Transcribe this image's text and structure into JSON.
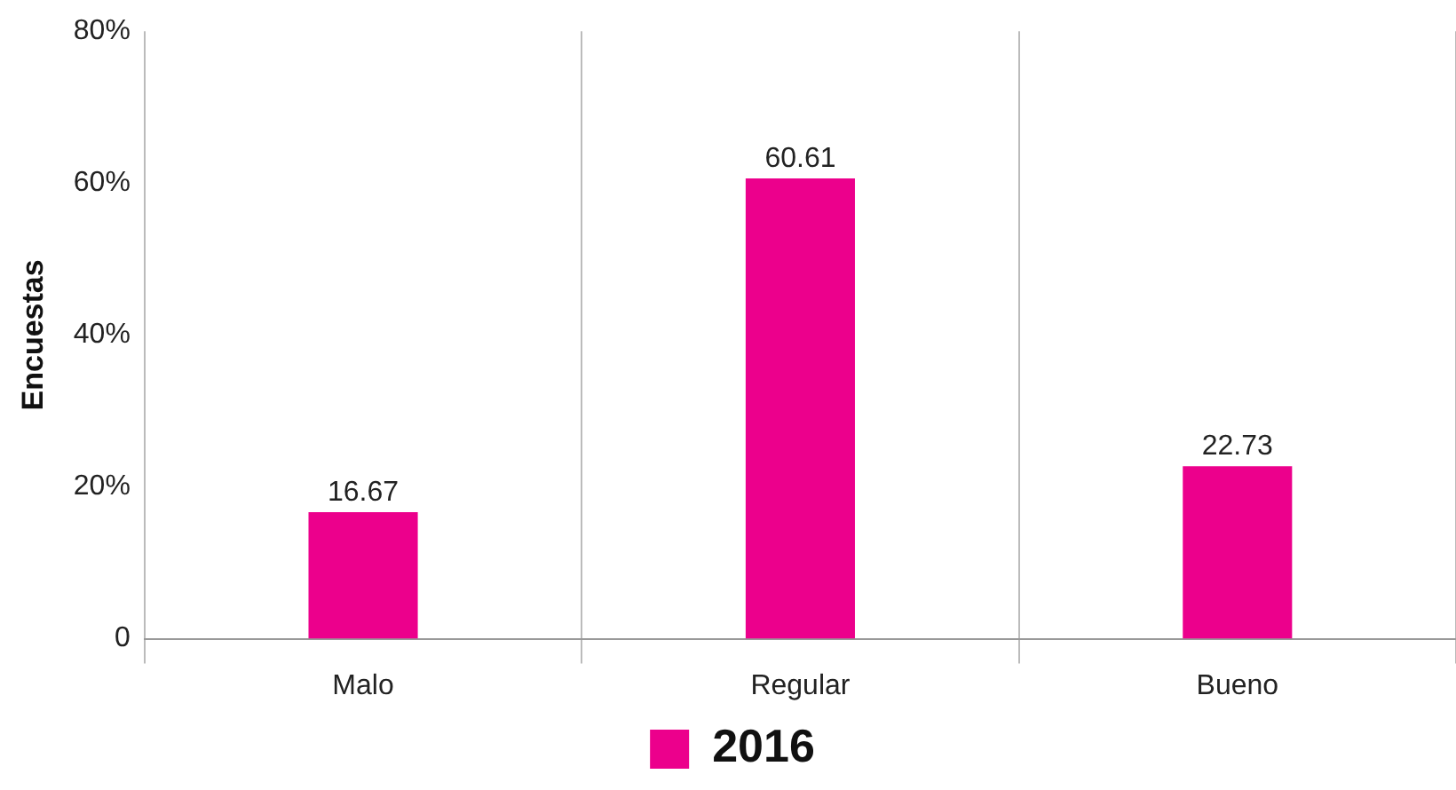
{
  "chart_data": {
    "type": "bar",
    "ylabel": "Encuestas",
    "categories": [
      "Malo",
      "Regular",
      "Bueno"
    ],
    "series": [
      {
        "name": "2016",
        "color": "#ec008c",
        "values": [
          16.67,
          60.61,
          22.73
        ]
      }
    ],
    "ylim": [
      0,
      80
    ],
    "yticks": [
      0,
      {
        "value": 20,
        "label": "20%"
      },
      {
        "value": 40,
        "label": "40%"
      },
      {
        "value": 60,
        "label": "60%"
      },
      {
        "value": 80,
        "label": "80%"
      }
    ],
    "grid": "x",
    "legend": "bottom",
    "data_labels": true
  }
}
